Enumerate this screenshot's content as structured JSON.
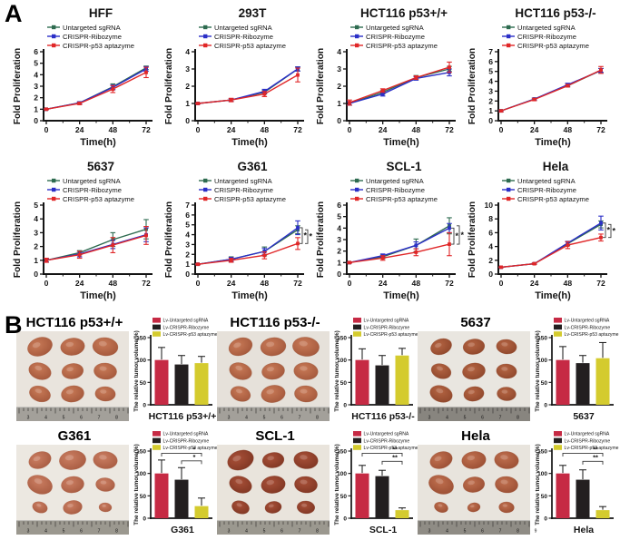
{
  "figure": {
    "panel_a_label": "A",
    "panel_b_label": "B"
  },
  "chart_data": {
    "line_common": {
      "type": "line",
      "x": [
        0,
        24,
        48,
        72
      ],
      "xlabel": "Time(h)",
      "ylabel": "Fold Proliferation",
      "legend": [
        {
          "label": "Untargeted sgRNA",
          "color": "#2e6b50"
        },
        {
          "label": "CRISPR-Ribozyme",
          "color": "#2b2fc7"
        },
        {
          "label": "CRISPR-p53 aptazyme",
          "color": "#e02728"
        }
      ]
    },
    "line_charts": [
      {
        "title": "HFF",
        "ymax": 6,
        "ystep": 1,
        "series": [
          {
            "name": "Untargeted sgRNA",
            "color": "#2e6b50",
            "values": [
              1.0,
              1.55,
              2.95,
              4.6
            ],
            "errors": [
              0.05,
              0.1,
              0.25,
              0.15
            ]
          },
          {
            "name": "CRISPR-Ribozyme",
            "color": "#2b2fc7",
            "values": [
              1.0,
              1.55,
              2.9,
              4.5
            ],
            "errors": [
              0.05,
              0.1,
              0.2,
              0.2
            ]
          },
          {
            "name": "CRISPR-p53 aptazyme",
            "color": "#e02728",
            "values": [
              1.0,
              1.5,
              2.75,
              4.2
            ],
            "errors": [
              0.05,
              0.1,
              0.3,
              0.45
            ]
          }
        ],
        "sig": []
      },
      {
        "title": "293T",
        "ymax": 4,
        "ystep": 1,
        "series": [
          {
            "name": "Untargeted sgRNA",
            "color": "#2e6b50",
            "values": [
              1.0,
              1.2,
              1.65,
              3.0
            ],
            "errors": [
              0.03,
              0.08,
              0.1,
              0.12
            ]
          },
          {
            "name": "CRISPR-Ribozyme",
            "color": "#2b2fc7",
            "values": [
              1.0,
              1.2,
              1.7,
              3.0
            ],
            "errors": [
              0.03,
              0.08,
              0.12,
              0.12
            ]
          },
          {
            "name": "CRISPR-p53 aptazyme",
            "color": "#e02728",
            "values": [
              1.0,
              1.2,
              1.55,
              2.65
            ],
            "errors": [
              0.03,
              0.1,
              0.15,
              0.4
            ]
          }
        ],
        "sig": []
      },
      {
        "title": "HCT116 p53+/+",
        "ymax": 4,
        "ystep": 1,
        "series": [
          {
            "name": "Untargeted sgRNA",
            "color": "#2e6b50",
            "values": [
              1.0,
              1.65,
              2.5,
              3.0
            ],
            "errors": [
              0.1,
              0.1,
              0.12,
              0.15
            ]
          },
          {
            "name": "CRISPR-Ribozyme",
            "color": "#2b2fc7",
            "values": [
              1.0,
              1.55,
              2.45,
              2.8
            ],
            "errors": [
              0.1,
              0.12,
              0.1,
              0.2
            ]
          },
          {
            "name": "CRISPR-p53 aptazyme",
            "color": "#e02728",
            "values": [
              1.05,
              1.75,
              2.5,
              3.1
            ],
            "errors": [
              0.15,
              0.1,
              0.1,
              0.3
            ]
          }
        ],
        "sig": []
      },
      {
        "title": "HCT116 p53-/-",
        "ymax": 7,
        "ystep": 1,
        "series": [
          {
            "name": "Untargeted sgRNA",
            "color": "#2e6b50",
            "values": [
              1.0,
              2.2,
              3.55,
              5.1
            ],
            "errors": [
              0.08,
              0.1,
              0.12,
              0.2
            ]
          },
          {
            "name": "CRISPR-Ribozyme",
            "color": "#2b2fc7",
            "values": [
              1.0,
              2.2,
              3.65,
              5.1
            ],
            "errors": [
              0.08,
              0.1,
              0.15,
              0.2
            ]
          },
          {
            "name": "CRISPR-p53 aptazyme",
            "color": "#e02728",
            "values": [
              1.0,
              2.15,
              3.55,
              5.15
            ],
            "errors": [
              0.1,
              0.12,
              0.12,
              0.35
            ]
          }
        ],
        "sig": []
      },
      {
        "title": "5637",
        "ymax": 5,
        "ystep": 1,
        "series": [
          {
            "name": "Untargeted sgRNA",
            "color": "#2e6b50",
            "values": [
              1.0,
              1.55,
              2.5,
              3.25
            ],
            "errors": [
              0.1,
              0.15,
              0.5,
              0.7
            ]
          },
          {
            "name": "CRISPR-Ribozyme",
            "color": "#2b2fc7",
            "values": [
              1.0,
              1.45,
              2.15,
              2.85
            ],
            "errors": [
              0.12,
              0.2,
              0.3,
              0.5
            ]
          },
          {
            "name": "CRISPR-p53 aptazyme",
            "color": "#e02728",
            "values": [
              1.0,
              1.4,
              2.1,
              2.8
            ],
            "errors": [
              0.15,
              0.25,
              0.55,
              0.65
            ]
          }
        ],
        "sig": []
      },
      {
        "title": "G361",
        "ymax": 7,
        "ystep": 1,
        "series": [
          {
            "name": "Untargeted sgRNA",
            "color": "#2e6b50",
            "values": [
              1.0,
              1.5,
              2.3,
              4.5
            ],
            "errors": [
              0.05,
              0.25,
              0.45,
              0.4
            ]
          },
          {
            "name": "CRISPR-Ribozyme",
            "color": "#2b2fc7",
            "values": [
              1.0,
              1.5,
              2.3,
              4.7
            ],
            "errors": [
              0.05,
              0.2,
              0.3,
              0.7
            ]
          },
          {
            "name": "CRISPR-p53 aptazyme",
            "color": "#e02728",
            "values": [
              1.0,
              1.4,
              1.9,
              3.1
            ],
            "errors": [
              0.05,
              0.2,
              0.35,
              0.6
            ]
          }
        ],
        "sig": [
          {
            "from": 1,
            "to": 2,
            "label": "*"
          },
          {
            "from": 0,
            "to": 2,
            "label": "*"
          }
        ]
      },
      {
        "title": "SCL-1",
        "ymax": 6,
        "ystep": 1,
        "series": [
          {
            "name": "Untargeted sgRNA",
            "color": "#2e6b50",
            "values": [
              1.0,
              1.5,
              2.5,
              4.2
            ],
            "errors": [
              0.05,
              0.15,
              0.55,
              0.7
            ]
          },
          {
            "name": "CRISPR-Ribozyme",
            "color": "#2b2fc7",
            "values": [
              1.0,
              1.6,
              2.5,
              4.0
            ],
            "errors": [
              0.05,
              0.15,
              0.3,
              0.4
            ]
          },
          {
            "name": "CRISPR-p53 aptazyme",
            "color": "#e02728",
            "values": [
              1.0,
              1.4,
              1.9,
              2.6
            ],
            "errors": [
              0.05,
              0.2,
              0.3,
              1.0
            ]
          }
        ],
        "sig": [
          {
            "from": 1,
            "to": 2,
            "label": "*"
          },
          {
            "from": 0,
            "to": 2,
            "label": "*"
          }
        ]
      },
      {
        "title": "Hela",
        "ymax": 10,
        "ystep": 2,
        "series": [
          {
            "name": "Untargeted sgRNA",
            "color": "#2e6b50",
            "values": [
              1.0,
              1.5,
              4.4,
              7.2
            ],
            "errors": [
              0.05,
              0.1,
              0.3,
              0.5
            ]
          },
          {
            "name": "CRISPR-Ribozyme",
            "color": "#2b2fc7",
            "values": [
              1.0,
              1.5,
              4.5,
              7.4
            ],
            "errors": [
              0.05,
              0.1,
              0.25,
              1.0
            ]
          },
          {
            "name": "CRISPR-p53 aptazyme",
            "color": "#e02728",
            "values": [
              1.0,
              1.5,
              4.2,
              5.3
            ],
            "errors": [
              0.05,
              0.1,
              0.5,
              0.5
            ]
          }
        ],
        "sig": [
          {
            "from": 1,
            "to": 2,
            "label": "*"
          },
          {
            "from": 0,
            "to": 2,
            "label": "*"
          }
        ]
      }
    ],
    "bar_common": {
      "type": "bar",
      "ylabel": "The relative tumor volume(%)",
      "yticks": [
        0,
        50,
        100,
        150
      ],
      "ymax": 150,
      "legend": [
        {
          "label": "Lv-Untargeted sgRNA",
          "color": "#c62a44"
        },
        {
          "label": "Lv-CRISPR-Ribozyme",
          "color": "#231f20"
        },
        {
          "label": "Lv-CRISPR-p53 aptazyme",
          "color": "#d4cb2e"
        }
      ]
    },
    "bar_charts": [
      {
        "title": "HCT116 p53+/+",
        "xlabel": "HCT116 p53+/+",
        "values": [
          100,
          90,
          93
        ],
        "errors": [
          28,
          20,
          15
        ],
        "sig": [],
        "photo": {
          "bg": "#e9e4dd",
          "tumor": "#c87a57",
          "tumor_dark": "#a2563a",
          "ruler": "#a3a09a",
          "sizes": [
            1.0,
            0.95,
            1.0,
            0.9,
            0.85,
            0.9,
            0.85,
            0.9,
            0.8
          ],
          "ruler_numbers": [
            "3",
            "4",
            "5",
            "6",
            "7",
            "8"
          ]
        }
      },
      {
        "title": "HCT116 p53-/-",
        "xlabel": "HCT116 p53-/-",
        "values": [
          100,
          88,
          110
        ],
        "errors": [
          25,
          22,
          16
        ],
        "sig": [],
        "photo": {
          "bg": "#e6e1da",
          "tumor": "#b96f4e",
          "tumor_dark": "#914d31",
          "ruler": "#a3a09a",
          "sizes": [
            0.95,
            1.0,
            1.05,
            0.9,
            0.9,
            0.95,
            0.8,
            0.95,
            0.9
          ],
          "ruler_numbers": [
            "3",
            "4",
            "5",
            "6",
            "7",
            "8"
          ]
        }
      },
      {
        "title": "5637",
        "xlabel": "5637",
        "values": [
          100,
          93,
          104
        ],
        "errors": [
          30,
          17,
          35
        ],
        "sig": [],
        "photo": {
          "bg": "#e9e6e0",
          "tumor": "#b56543",
          "tumor_dark": "#8d452a",
          "ruler": "#88857f",
          "sizes": [
            0.85,
            0.85,
            0.8,
            0.8,
            0.9,
            0.8,
            0.9,
            0.8,
            0.75
          ],
          "ruler_numbers": [
            "3",
            "4",
            "5",
            "6",
            "7",
            "8"
          ]
        }
      },
      {
        "title": "G361",
        "xlabel": "G361",
        "values": [
          100,
          86,
          27
        ],
        "errors": [
          30,
          27,
          18
        ],
        "sig": [
          {
            "from": 0,
            "to": 2,
            "label": "*",
            "y": 145
          },
          {
            "from": 1,
            "to": 2,
            "label": "*",
            "y": 128
          }
        ],
        "photo": {
          "bg": "#ece8e1",
          "tumor": "#cb7e62",
          "tumor_dark": "#a65a40",
          "ruler": "#9b988f",
          "sizes": [
            0.9,
            1.05,
            0.95,
            1.0,
            0.9,
            0.75,
            0.6,
            0.75,
            0.5
          ],
          "ruler_numbers": [
            "3",
            "4",
            "5",
            "6",
            "7",
            "8"
          ]
        }
      },
      {
        "title": "SCL-1",
        "xlabel": "SCL-1",
        "values": [
          100,
          94,
          18
        ],
        "errors": [
          18,
          13,
          5
        ],
        "sig": [
          {
            "from": 0,
            "to": 2,
            "label": "**",
            "y": 145
          },
          {
            "from": 1,
            "to": 2,
            "label": "**",
            "y": 127
          }
        ],
        "photo": {
          "bg": "#e9e4dc",
          "tumor": "#a85038",
          "tumor_dark": "#7e3522",
          "ruler": "#9b988f",
          "sizes": [
            1.05,
            0.85,
            0.95,
            0.9,
            0.95,
            0.9,
            0.7,
            0.65,
            0.7
          ],
          "ruler_numbers": [
            "3",
            "4",
            "5",
            "6",
            "7",
            "8"
          ]
        }
      },
      {
        "title": "Hela",
        "xlabel": "Hela",
        "values": [
          100,
          86,
          18
        ],
        "errors": [
          18,
          22,
          8
        ],
        "sig": [
          {
            "from": 0,
            "to": 2,
            "label": "**",
            "y": 145
          },
          {
            "from": 1,
            "to": 2,
            "label": "**",
            "y": 127
          }
        ],
        "photo": {
          "bg": "#e8e4dd",
          "tumor": "#c0704f",
          "tumor_dark": "#994d32",
          "ruler": "#8f8c85",
          "sizes": [
            0.9,
            0.95,
            0.95,
            1.0,
            0.85,
            0.9,
            0.55,
            0.5,
            0.6
          ],
          "ruler_numbers": [
            "3",
            "4",
            "5",
            "6",
            "7",
            "8",
            "9"
          ]
        }
      }
    ]
  }
}
